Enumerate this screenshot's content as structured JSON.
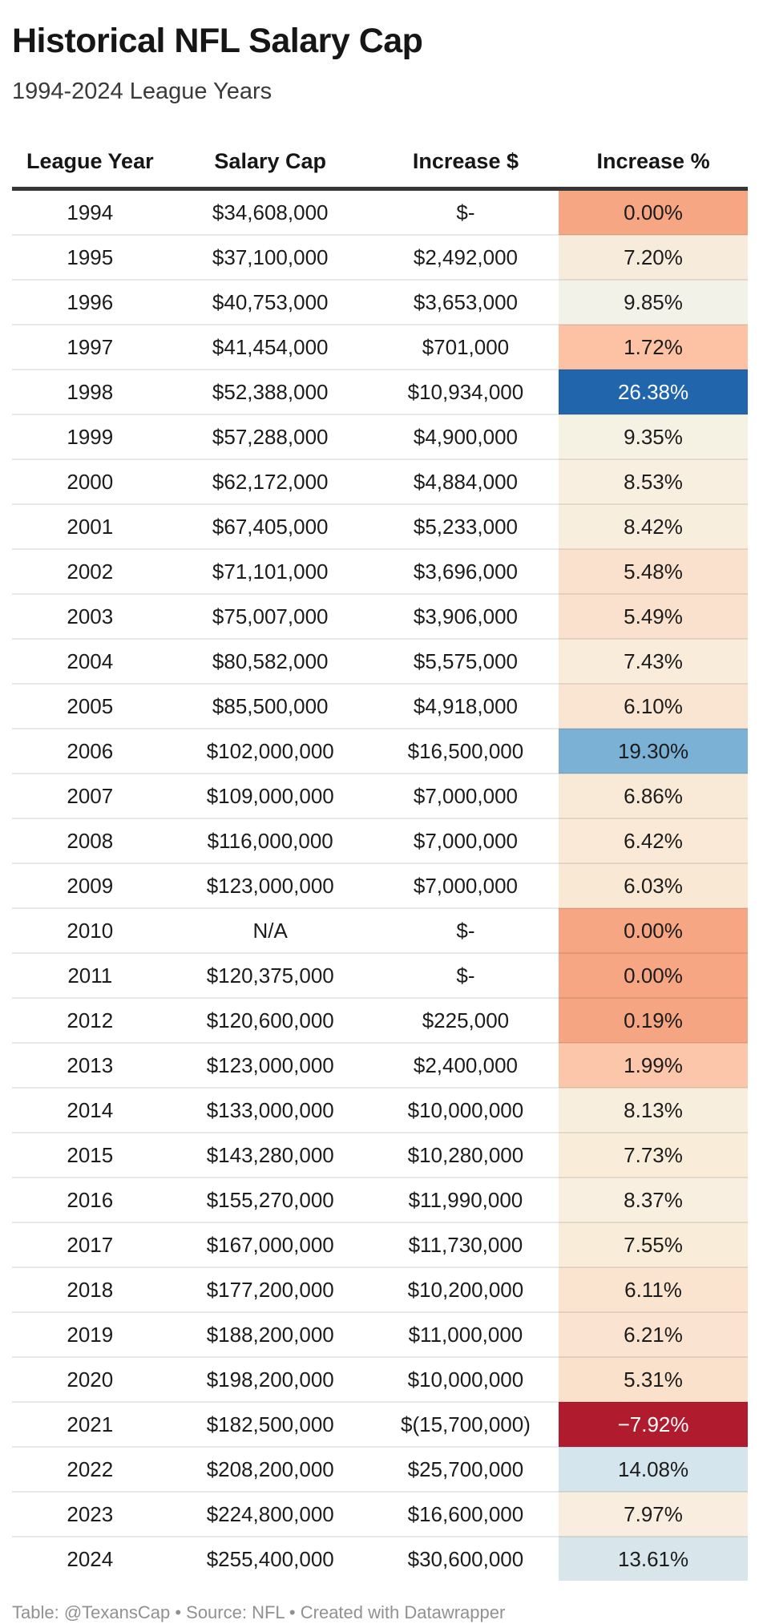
{
  "title": "Historical NFL Salary Cap",
  "subtitle": "1994-2024 League Years",
  "footer": "Table: @TexansCap • Source: NFL • Created with Datawrapper",
  "colors": {
    "header_rule": "#363636",
    "strong_increase_blue": "#2166ac",
    "decrease_red": "#b11b2e",
    "zero_increase_salmon": "#f6a683"
  },
  "chart_data": {
    "type": "table",
    "title": "Historical NFL Salary Cap",
    "subtitle": "1994-2024 League Years",
    "columns": [
      "League Year",
      "Salary Cap",
      "Increase $",
      "Increase %"
    ],
    "rows": [
      {
        "year": "1994",
        "salary_cap": "$34,608,000",
        "increase_usd": "$-",
        "increase_pct": "0.00%",
        "pct_bg": "#f6a683",
        "pct_fg": "#1c1c1c"
      },
      {
        "year": "1995",
        "salary_cap": "$37,100,000",
        "increase_usd": "$2,492,000",
        "increase_pct": "7.20%",
        "pct_bg": "#f7ebdb",
        "pct_fg": "#1c1c1c"
      },
      {
        "year": "1996",
        "salary_cap": "$40,753,000",
        "increase_usd": "$3,653,000",
        "increase_pct": "9.85%",
        "pct_bg": "#f2f2e9",
        "pct_fg": "#1c1c1c"
      },
      {
        "year": "1997",
        "salary_cap": "$41,454,000",
        "increase_usd": "$701,000",
        "increase_pct": "1.72%",
        "pct_bg": "#fcc2a3",
        "pct_fg": "#1c1c1c"
      },
      {
        "year": "1998",
        "salary_cap": "$52,388,000",
        "increase_usd": "$10,934,000",
        "increase_pct": "26.38%",
        "pct_bg": "#2166ac",
        "pct_fg": "#ffffff"
      },
      {
        "year": "1999",
        "salary_cap": "$57,288,000",
        "increase_usd": "$4,900,000",
        "increase_pct": "9.35%",
        "pct_bg": "#f5f1e3",
        "pct_fg": "#1c1c1c"
      },
      {
        "year": "2000",
        "salary_cap": "$62,172,000",
        "increase_usd": "$4,884,000",
        "increase_pct": "8.53%",
        "pct_bg": "#f8efe0",
        "pct_fg": "#1c1c1c"
      },
      {
        "year": "2001",
        "salary_cap": "$67,405,000",
        "increase_usd": "$5,233,000",
        "increase_pct": "8.42%",
        "pct_bg": "#f8eede",
        "pct_fg": "#1c1c1c"
      },
      {
        "year": "2002",
        "salary_cap": "$71,101,000",
        "increase_usd": "$3,696,000",
        "increase_pct": "5.48%",
        "pct_bg": "#fae1cd",
        "pct_fg": "#1c1c1c"
      },
      {
        "year": "2003",
        "salary_cap": "$75,007,000",
        "increase_usd": "$3,906,000",
        "increase_pct": "5.49%",
        "pct_bg": "#fae1cd",
        "pct_fg": "#1c1c1c"
      },
      {
        "year": "2004",
        "salary_cap": "$80,582,000",
        "increase_usd": "$5,575,000",
        "increase_pct": "7.43%",
        "pct_bg": "#f9ecda",
        "pct_fg": "#1c1c1c"
      },
      {
        "year": "2005",
        "salary_cap": "$85,500,000",
        "increase_usd": "$4,918,000",
        "increase_pct": "6.10%",
        "pct_bg": "#fae5d2",
        "pct_fg": "#1c1c1c"
      },
      {
        "year": "2006",
        "salary_cap": "$102,000,000",
        "increase_usd": "$16,500,000",
        "increase_pct": "19.30%",
        "pct_bg": "#7ab1d4",
        "pct_fg": "#1c1c1c"
      },
      {
        "year": "2007",
        "salary_cap": "$109,000,000",
        "increase_usd": "$7,000,000",
        "increase_pct": "6.86%",
        "pct_bg": "#f9ead7",
        "pct_fg": "#1c1c1c"
      },
      {
        "year": "2008",
        "salary_cap": "$116,000,000",
        "increase_usd": "$7,000,000",
        "increase_pct": "6.42%",
        "pct_bg": "#f9e9d6",
        "pct_fg": "#1c1c1c"
      },
      {
        "year": "2009",
        "salary_cap": "$123,000,000",
        "increase_usd": "$7,000,000",
        "increase_pct": "6.03%",
        "pct_bg": "#f9e8d4",
        "pct_fg": "#1c1c1c"
      },
      {
        "year": "2010",
        "salary_cap": "N/A",
        "increase_usd": "$-",
        "increase_pct": "0.00%",
        "pct_bg": "#f6a683",
        "pct_fg": "#1c1c1c"
      },
      {
        "year": "2011",
        "salary_cap": "$120,375,000",
        "increase_usd": "$-",
        "increase_pct": "0.00%",
        "pct_bg": "#f6a683",
        "pct_fg": "#1c1c1c"
      },
      {
        "year": "2012",
        "salary_cap": "$120,600,000",
        "increase_usd": "$225,000",
        "increase_pct": "0.19%",
        "pct_bg": "#f6a582",
        "pct_fg": "#1c1c1c"
      },
      {
        "year": "2013",
        "salary_cap": "$123,000,000",
        "increase_usd": "$2,400,000",
        "increase_pct": "1.99%",
        "pct_bg": "#fbc6aa",
        "pct_fg": "#1c1c1c"
      },
      {
        "year": "2014",
        "salary_cap": "$133,000,000",
        "increase_usd": "$10,000,000",
        "increase_pct": "8.13%",
        "pct_bg": "#f8eedd",
        "pct_fg": "#1c1c1c"
      },
      {
        "year": "2015",
        "salary_cap": "$143,280,000",
        "increase_usd": "$10,280,000",
        "increase_pct": "7.73%",
        "pct_bg": "#f9edda",
        "pct_fg": "#1c1c1c"
      },
      {
        "year": "2016",
        "salary_cap": "$155,270,000",
        "increase_usd": "$11,990,000",
        "increase_pct": "8.37%",
        "pct_bg": "#f8efe0",
        "pct_fg": "#1c1c1c"
      },
      {
        "year": "2017",
        "salary_cap": "$167,000,000",
        "increase_usd": "$11,730,000",
        "increase_pct": "7.55%",
        "pct_bg": "#f9ecd9",
        "pct_fg": "#1c1c1c"
      },
      {
        "year": "2018",
        "salary_cap": "$177,200,000",
        "increase_usd": "$10,200,000",
        "increase_pct": "6.11%",
        "pct_bg": "#fae3cf",
        "pct_fg": "#1c1c1c"
      },
      {
        "year": "2019",
        "salary_cap": "$188,200,000",
        "increase_usd": "$11,000,000",
        "increase_pct": "6.21%",
        "pct_bg": "#fae3d0",
        "pct_fg": "#1c1c1c"
      },
      {
        "year": "2020",
        "salary_cap": "$198,200,000",
        "increase_usd": "$10,000,000",
        "increase_pct": "5.31%",
        "pct_bg": "#fae1cb",
        "pct_fg": "#1c1c1c"
      },
      {
        "year": "2021",
        "salary_cap": "$182,500,000",
        "increase_usd": "$(15,700,000)",
        "increase_pct": "−7.92%",
        "pct_bg": "#b11b2e",
        "pct_fg": "#ffffff"
      },
      {
        "year": "2022",
        "salary_cap": "$208,200,000",
        "increase_usd": "$25,700,000",
        "increase_pct": "14.08%",
        "pct_bg": "#d5e5ed",
        "pct_fg": "#1c1c1c"
      },
      {
        "year": "2023",
        "salary_cap": "$224,800,000",
        "increase_usd": "$16,600,000",
        "increase_pct": "7.97%",
        "pct_bg": "#f8edde",
        "pct_fg": "#1c1c1c"
      },
      {
        "year": "2024",
        "salary_cap": "$255,400,000",
        "increase_usd": "$30,600,000",
        "increase_pct": "13.61%",
        "pct_bg": "#d8e6ec",
        "pct_fg": "#1c1c1c"
      }
    ]
  }
}
